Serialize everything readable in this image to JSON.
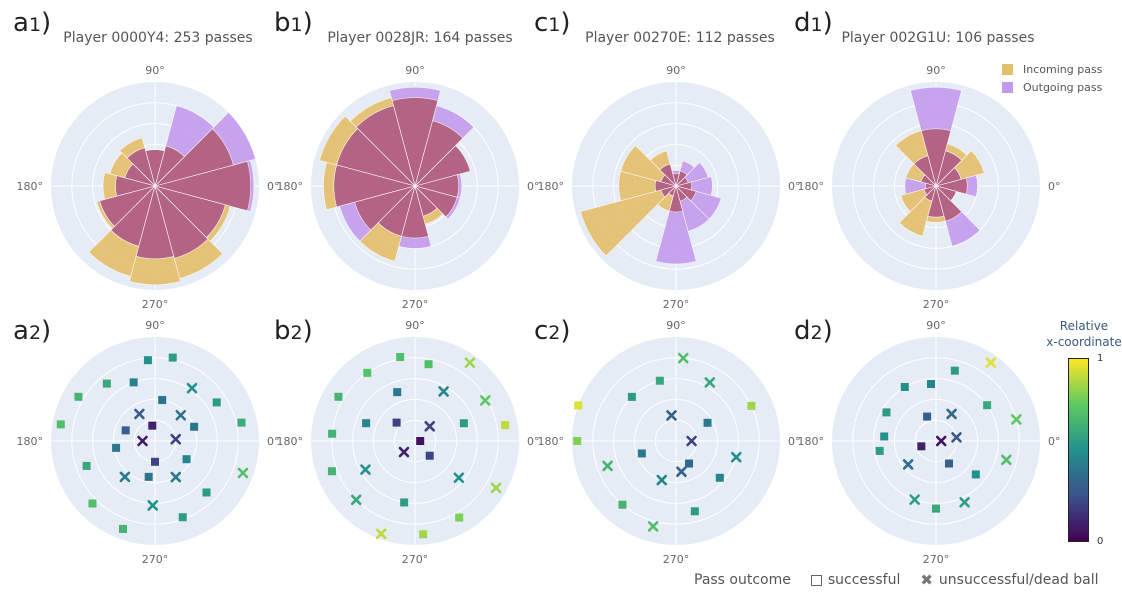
{
  "labels": {
    "a1": {
      "letter": "a",
      "sub": "1",
      "paren": ")"
    },
    "b1": {
      "letter": "b",
      "sub": "1",
      "paren": ")"
    },
    "c1": {
      "letter": "c",
      "sub": "1",
      "paren": ")"
    },
    "d1": {
      "letter": "d",
      "sub": "1",
      "paren": ")"
    },
    "a2": {
      "letter": "a",
      "sub": "2",
      "paren": ")"
    },
    "b2": {
      "letter": "b",
      "sub": "2",
      "paren": ")"
    },
    "c2": {
      "letter": "c",
      "sub": "2",
      "paren": ")"
    },
    "d2": {
      "letter": "d",
      "sub": "2",
      "paren": ")"
    }
  },
  "titles": {
    "a": "Player 0000Y4: 253 passes",
    "b": "Player 0028JR: 164 passes",
    "c": "Player 00270E: 112 passes",
    "d": "Player 002G1U: 106 passes"
  },
  "angle_labels": [
    "0°",
    "90°",
    "180°",
    "270°"
  ],
  "legend_top": {
    "incoming": "Incoming pass",
    "outgoing": "Outgoing pass"
  },
  "legend_bottom": {
    "title": "Pass outcome",
    "successful": "successful",
    "unsuccessful": "unsuccessful/dead ball"
  },
  "colorbar": {
    "title_line1": "Relative",
    "title_line2": "x-coordinate",
    "max_label": "1",
    "min_label": "0"
  },
  "colors": {
    "plot_bg": "#e5ecf6",
    "incoming": "#e3bf6a",
    "outgoing": "#c39bec",
    "overlap": "#b2607e",
    "marker_palette": [
      "#440154",
      "#3b528b",
      "#21918c",
      "#5ec962",
      "#fde725"
    ]
  },
  "chart_data": [
    {
      "type": "barpolar",
      "panel": "a1",
      "title": "Player 0000Y4: 253 passes",
      "sectors_deg": [
        0,
        30,
        60,
        90,
        120,
        150,
        180,
        210,
        240,
        270,
        300,
        330
      ],
      "rmax": 1,
      "series": [
        {
          "name": "Incoming pass",
          "values": [
            0.92,
            0.78,
            0.4,
            0.35,
            0.48,
            0.45,
            0.5,
            0.58,
            0.9,
            0.95,
            0.92,
            0.75
          ]
        },
        {
          "name": "Outgoing pass",
          "values": [
            0.95,
            1.0,
            0.8,
            0.35,
            0.38,
            0.3,
            0.38,
            0.55,
            0.6,
            0.7,
            0.72,
            0.7
          ]
        }
      ]
    },
    {
      "type": "barpolar",
      "panel": "b1",
      "title": "Player 0028JR: 164 passes",
      "sectors_deg": [
        0,
        30,
        60,
        90,
        120,
        150,
        180,
        210,
        240,
        270,
        300,
        330
      ],
      "rmax": 1,
      "series": [
        {
          "name": "Incoming pass",
          "values": [
            0.42,
            0.55,
            0.65,
            0.85,
            0.88,
            0.95,
            0.88,
            0.6,
            0.75,
            0.5,
            0.38,
            0.42
          ]
        },
        {
          "name": "Outgoing pass",
          "values": [
            0.45,
            0.55,
            0.8,
            0.95,
            0.8,
            0.78,
            0.78,
            0.75,
            0.5,
            0.6,
            0.3,
            0.45
          ]
        }
      ]
    },
    {
      "type": "barpolar",
      "panel": "c1",
      "title": "Player 00270E: 112 passes",
      "sectors_deg": [
        0,
        30,
        60,
        90,
        120,
        150,
        180,
        210,
        240,
        270,
        300,
        330
      ],
      "rmax": 1,
      "series": [
        {
          "name": "Incoming pass",
          "values": [
            0.15,
            0.12,
            0.15,
            0.12,
            0.35,
            0.55,
            0.55,
            0.95,
            0.25,
            0.25,
            0.15,
            0.2
          ]
        },
        {
          "name": "Outgoing pass",
          "values": [
            0.35,
            0.32,
            0.25,
            0.15,
            0.22,
            0.15,
            0.2,
            0.15,
            0.1,
            0.75,
            0.45,
            0.45
          ]
        }
      ]
    },
    {
      "type": "barpolar",
      "panel": "d1",
      "title": "Player 002G1U: 106 passes",
      "sectors_deg": [
        0,
        30,
        60,
        90,
        120,
        150,
        180,
        210,
        240,
        270,
        300,
        330
      ],
      "rmax": 1,
      "series": [
        {
          "name": "Incoming pass",
          "values": [
            0.3,
            0.48,
            0.42,
            0.55,
            0.55,
            0.3,
            0.1,
            0.35,
            0.5,
            0.35,
            0.35,
            0.2
          ]
        },
        {
          "name": "Outgoing pass",
          "values": [
            0.4,
            0.25,
            0.35,
            0.95,
            0.3,
            0.15,
            0.3,
            0.12,
            0.15,
            0.3,
            0.6,
            0.2
          ]
        }
      ]
    },
    {
      "type": "scatterpolar",
      "panel": "a2",
      "color_scale": "Viridis (relative x-coordinate, 0 to 1)",
      "marker_symbols": {
        "successful": "square",
        "unsuccessful": "x"
      },
      "points": [
        [
          12,
          0.85,
          0.62,
          1
        ],
        [
          32,
          0.7,
          0.55,
          1
        ],
        [
          55,
          0.62,
          0.5,
          0
        ],
        [
          78,
          0.82,
          0.55,
          1
        ],
        [
          95,
          0.78,
          0.5,
          1
        ],
        [
          110,
          0.6,
          0.45,
          1
        ],
        [
          130,
          0.72,
          0.6,
          1
        ],
        [
          150,
          0.85,
          0.65,
          1
        ],
        [
          170,
          0.92,
          0.7,
          1
        ],
        [
          200,
          0.7,
          0.6,
          1
        ],
        [
          225,
          0.85,
          0.7,
          1
        ],
        [
          250,
          0.9,
          0.65,
          1
        ],
        [
          268,
          0.62,
          0.5,
          0
        ],
        [
          290,
          0.78,
          0.55,
          1
        ],
        [
          315,
          0.7,
          0.55,
          1
        ],
        [
          340,
          0.9,
          0.7,
          0
        ],
        [
          20,
          0.4,
          0.4,
          1
        ],
        [
          45,
          0.35,
          0.38,
          0
        ],
        [
          80,
          0.4,
          0.38,
          1
        ],
        [
          120,
          0.3,
          0.3,
          0
        ],
        [
          160,
          0.3,
          0.3,
          1
        ],
        [
          190,
          0.38,
          0.4,
          1
        ],
        [
          230,
          0.45,
          0.42,
          0
        ],
        [
          260,
          0.35,
          0.38,
          1
        ],
        [
          300,
          0.4,
          0.4,
          0
        ],
        [
          330,
          0.35,
          0.45,
          1
        ],
        [
          5,
          0.2,
          0.2,
          0
        ],
        [
          100,
          0.15,
          0.1,
          1
        ],
        [
          180,
          0.12,
          0.08,
          0
        ],
        [
          270,
          0.2,
          0.2,
          1
        ]
      ]
    },
    {
      "type": "scatterpolar",
      "panel": "b2",
      "color_scale": "Viridis (relative x-coordinate, 0 to 1)",
      "marker_symbols": {
        "successful": "square",
        "unsuccessful": "x"
      },
      "points": [
        [
          10,
          0.88,
          0.9,
          1
        ],
        [
          30,
          0.78,
          0.75,
          0
        ],
        [
          55,
          0.92,
          0.85,
          0
        ],
        [
          80,
          0.75,
          0.7,
          1
        ],
        [
          100,
          0.82,
          0.7,
          1
        ],
        [
          125,
          0.8,
          0.72,
          1
        ],
        [
          150,
          0.85,
          0.65,
          1
        ],
        [
          175,
          0.8,
          0.65,
          1
        ],
        [
          200,
          0.85,
          0.65,
          1
        ],
        [
          225,
          0.8,
          0.6,
          0
        ],
        [
          250,
          0.95,
          0.9,
          0
        ],
        [
          275,
          0.9,
          0.85,
          1
        ],
        [
          300,
          0.85,
          0.8,
          1
        ],
        [
          330,
          0.9,
          0.85,
          0
        ],
        [
          20,
          0.5,
          0.55,
          1
        ],
        [
          60,
          0.55,
          0.45,
          0
        ],
        [
          110,
          0.5,
          0.4,
          1
        ],
        [
          160,
          0.5,
          0.45,
          1
        ],
        [
          210,
          0.55,
          0.5,
          0
        ],
        [
          260,
          0.6,
          0.55,
          1
        ],
        [
          320,
          0.55,
          0.5,
          0
        ],
        [
          45,
          0.2,
          0.2,
          0
        ],
        [
          135,
          0.25,
          0.2,
          1
        ],
        [
          225,
          0.15,
          0.1,
          0
        ],
        [
          315,
          0.2,
          0.2,
          1
        ],
        [
          0,
          0.05,
          0.05,
          1
        ]
      ]
    },
    {
      "type": "scatterpolar",
      "panel": "c2",
      "color_scale": "Viridis (relative x-coordinate, 0 to 1)",
      "marker_symbols": {
        "successful": "square",
        "unsuccessful": "x"
      },
      "points": [
        [
          25,
          0.8,
          0.85,
          1
        ],
        [
          60,
          0.65,
          0.6,
          0
        ],
        [
          85,
          0.8,
          0.7,
          0
        ],
        [
          105,
          0.6,
          0.6,
          1
        ],
        [
          135,
          0.6,
          0.55,
          1
        ],
        [
          160,
          1.0,
          0.95,
          1
        ],
        [
          180,
          0.95,
          0.8,
          1
        ],
        [
          200,
          0.7,
          0.65,
          0
        ],
        [
          230,
          0.8,
          0.65,
          1
        ],
        [
          255,
          0.85,
          0.7,
          0
        ],
        [
          285,
          0.7,
          0.55,
          1
        ],
        [
          320,
          0.55,
          0.45,
          1
        ],
        [
          345,
          0.6,
          0.5,
          0
        ],
        [
          30,
          0.35,
          0.4,
          1
        ],
        [
          100,
          0.25,
          0.3,
          0
        ],
        [
          200,
          0.35,
          0.4,
          1
        ],
        [
          250,
          0.4,
          0.45,
          0
        ],
        [
          280,
          0.3,
          0.3,
          0
        ],
        [
          300,
          0.25,
          0.35,
          1
        ],
        [
          0,
          0.15,
          0.2,
          0
        ]
      ]
    },
    {
      "type": "scatterpolar",
      "panel": "d2",
      "color_scale": "Viridis (relative x-coordinate, 0 to 1)",
      "marker_symbols": {
        "successful": "square",
        "unsuccessful": "x"
      },
      "points": [
        [
          15,
          0.8,
          0.75,
          0
        ],
        [
          35,
          0.6,
          0.6,
          1
        ],
        [
          55,
          0.92,
          0.95,
          0
        ],
        [
          75,
          0.7,
          0.55,
          1
        ],
        [
          95,
          0.55,
          0.45,
          1
        ],
        [
          120,
          0.6,
          0.5,
          1
        ],
        [
          150,
          0.55,
          0.55,
          1
        ],
        [
          175,
          0.5,
          0.5,
          1
        ],
        [
          190,
          0.55,
          0.55,
          1
        ],
        [
          220,
          0.35,
          0.35,
          0
        ],
        [
          250,
          0.6,
          0.55,
          0
        ],
        [
          270,
          0.65,
          0.6,
          1
        ],
        [
          295,
          0.65,
          0.55,
          0
        ],
        [
          320,
          0.5,
          0.5,
          1
        ],
        [
          345,
          0.7,
          0.7,
          0
        ],
        [
          10,
          0.2,
          0.25,
          0
        ],
        [
          60,
          0.3,
          0.35,
          0
        ],
        [
          110,
          0.25,
          0.3,
          1
        ],
        [
          200,
          0.15,
          0.1,
          1
        ],
        [
          300,
          0.25,
          0.3,
          1
        ],
        [
          0,
          0.05,
          0.05,
          0
        ]
      ]
    }
  ]
}
